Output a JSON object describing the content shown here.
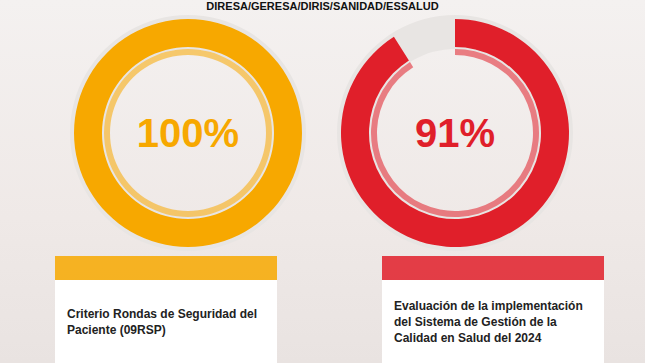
{
  "header": "DIRESA/GERESA/DIRIS/SANIDAD/ESSALUD",
  "chart_data": [
    {
      "type": "gauge",
      "title": "Criterio Rondas de Seguridad del Paciente (09RSP)",
      "values": [
        100
      ],
      "value_labels": [
        "100%"
      ],
      "ylim": [
        0,
        100
      ],
      "color": "#f7a800"
    },
    {
      "type": "gauge",
      "title": "Evaluación de la implementación del Sistema de Gestión de la Calidad en Salud del 2024",
      "values": [
        91
      ],
      "value_labels": [
        "91%"
      ],
      "ylim": [
        0,
        100
      ],
      "color": "#e01f2a"
    }
  ]
}
